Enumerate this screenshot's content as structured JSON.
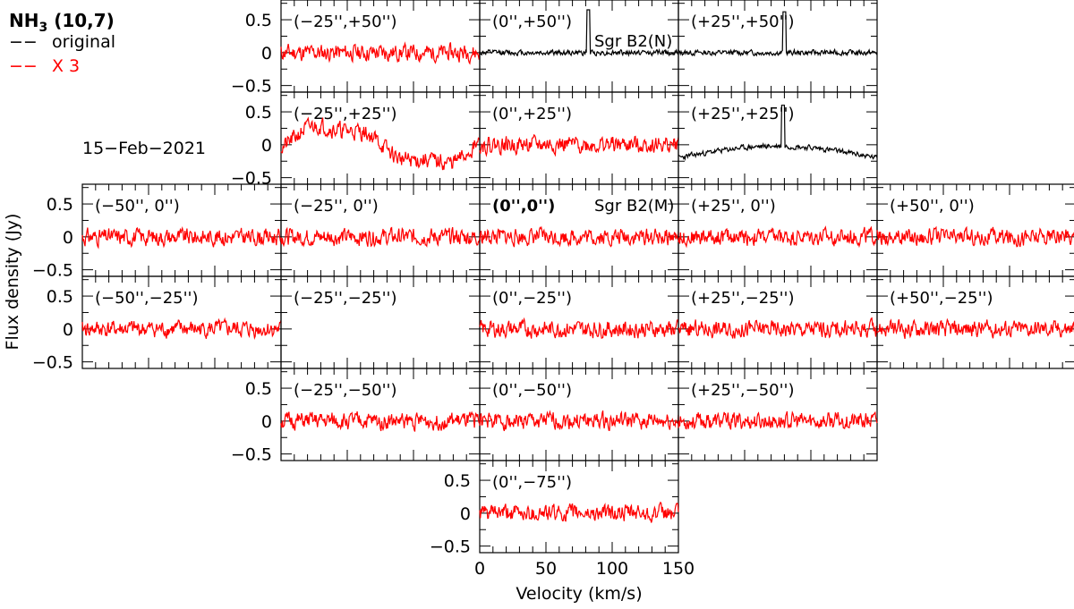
{
  "chart_data": {
    "type": "line",
    "title": "NH3 (10,7)",
    "title_main": "NH",
    "title_sub": "3",
    "title_rest": " (10,7)",
    "date": "15−Feb−2021",
    "xlabel": "Velocity (km/s)",
    "ylabel": "Flux density (Jy)",
    "xlim": [
      0,
      150
    ],
    "ylim": [
      -0.6,
      0.8
    ],
    "x_ticks": [
      "0",
      "50",
      "100",
      "150"
    ],
    "y_ticks": [
      "0.5",
      "0",
      "−0.5"
    ],
    "legend": [
      {
        "label": "original",
        "color": "#000000",
        "dash": "−−"
      },
      {
        "label": "X 3",
        "color": "#ff0000",
        "dash": "−−"
      }
    ],
    "colors": {
      "original": "#000000",
      "scaled": "#ff0000"
    },
    "panels": [
      {
        "label": "(−25'',+50'')",
        "col": 1,
        "row": 0,
        "color": "red",
        "note": "",
        "bold": false,
        "seed": 11,
        "baseline": "flat"
      },
      {
        "label": "(0'',+50'')",
        "col": 2,
        "row": 0,
        "color": "black",
        "note": "Sgr B2(N)",
        "bold": false,
        "seed": 12,
        "baseline": "flat",
        "peak": {
          "x": 82,
          "y": 0.65
        }
      },
      {
        "label": "(+25'',+50'')",
        "col": 3,
        "row": 0,
        "color": "black",
        "note": "",
        "bold": false,
        "seed": 13,
        "baseline": "flat",
        "peak": {
          "x": 80,
          "y": 0.62
        }
      },
      {
        "label": "(−25'',+25'')",
        "col": 1,
        "row": 1,
        "color": "red",
        "note": "",
        "bold": false,
        "seed": 21,
        "baseline": "wavy"
      },
      {
        "label": "(0'',+25'')",
        "col": 2,
        "row": 1,
        "color": "red",
        "note": "",
        "bold": false,
        "seed": 22,
        "baseline": "flat"
      },
      {
        "label": "(+25'',+25'')",
        "col": 3,
        "row": 1,
        "color": "black",
        "note": "",
        "bold": false,
        "seed": 23,
        "baseline": "hump",
        "peak": {
          "x": 79,
          "y": 0.6
        }
      },
      {
        "label": "(−50'', 0'')",
        "col": 0,
        "row": 2,
        "color": "red",
        "note": "",
        "bold": false,
        "seed": 31,
        "baseline": "flat"
      },
      {
        "label": "(−25'', 0'')",
        "col": 1,
        "row": 2,
        "color": "red",
        "note": "",
        "bold": false,
        "seed": 32,
        "baseline": "flat"
      },
      {
        "label": "(0'',0'')",
        "col": 2,
        "row": 2,
        "color": "red",
        "note": "Sgr B2(M)",
        "bold": true,
        "seed": 33,
        "baseline": "flat"
      },
      {
        "label": "(+25'', 0'')",
        "col": 3,
        "row": 2,
        "color": "red",
        "note": "",
        "bold": false,
        "seed": 34,
        "baseline": "flat"
      },
      {
        "label": "(+50'', 0'')",
        "col": 4,
        "row": 2,
        "color": "red",
        "note": "",
        "bold": false,
        "seed": 35,
        "baseline": "flat"
      },
      {
        "label": "(−50'',−25'')",
        "col": 0,
        "row": 3,
        "color": "red",
        "note": "",
        "bold": false,
        "seed": 41,
        "baseline": "flat"
      },
      {
        "label": "(−25'',−25'')",
        "col": 1,
        "row": 3,
        "color": "red",
        "note": "",
        "bold": false,
        "seed": 42,
        "baseline": "none"
      },
      {
        "label": "(0'',−25'')",
        "col": 2,
        "row": 3,
        "color": "red",
        "note": "",
        "bold": false,
        "seed": 43,
        "baseline": "flat"
      },
      {
        "label": "(+25'',−25'')",
        "col": 3,
        "row": 3,
        "color": "red",
        "note": "",
        "bold": false,
        "seed": 44,
        "baseline": "flat"
      },
      {
        "label": "(+50'',−25'')",
        "col": 4,
        "row": 3,
        "color": "red",
        "note": "",
        "bold": false,
        "seed": 45,
        "baseline": "flat"
      },
      {
        "label": "(−25'',−50'')",
        "col": 1,
        "row": 4,
        "color": "red",
        "note": "",
        "bold": false,
        "seed": 51,
        "baseline": "flat"
      },
      {
        "label": "(0'',−50'')",
        "col": 2,
        "row": 4,
        "color": "red",
        "note": "",
        "bold": false,
        "seed": 52,
        "baseline": "flat"
      },
      {
        "label": "(+25'',−50'')",
        "col": 3,
        "row": 4,
        "color": "red",
        "note": "",
        "bold": false,
        "seed": 53,
        "baseline": "flat"
      },
      {
        "label": "(0'',−75'')",
        "col": 2,
        "row": 5,
        "color": "red",
        "note": "",
        "bold": false,
        "seed": 61,
        "baseline": "flat"
      }
    ]
  }
}
